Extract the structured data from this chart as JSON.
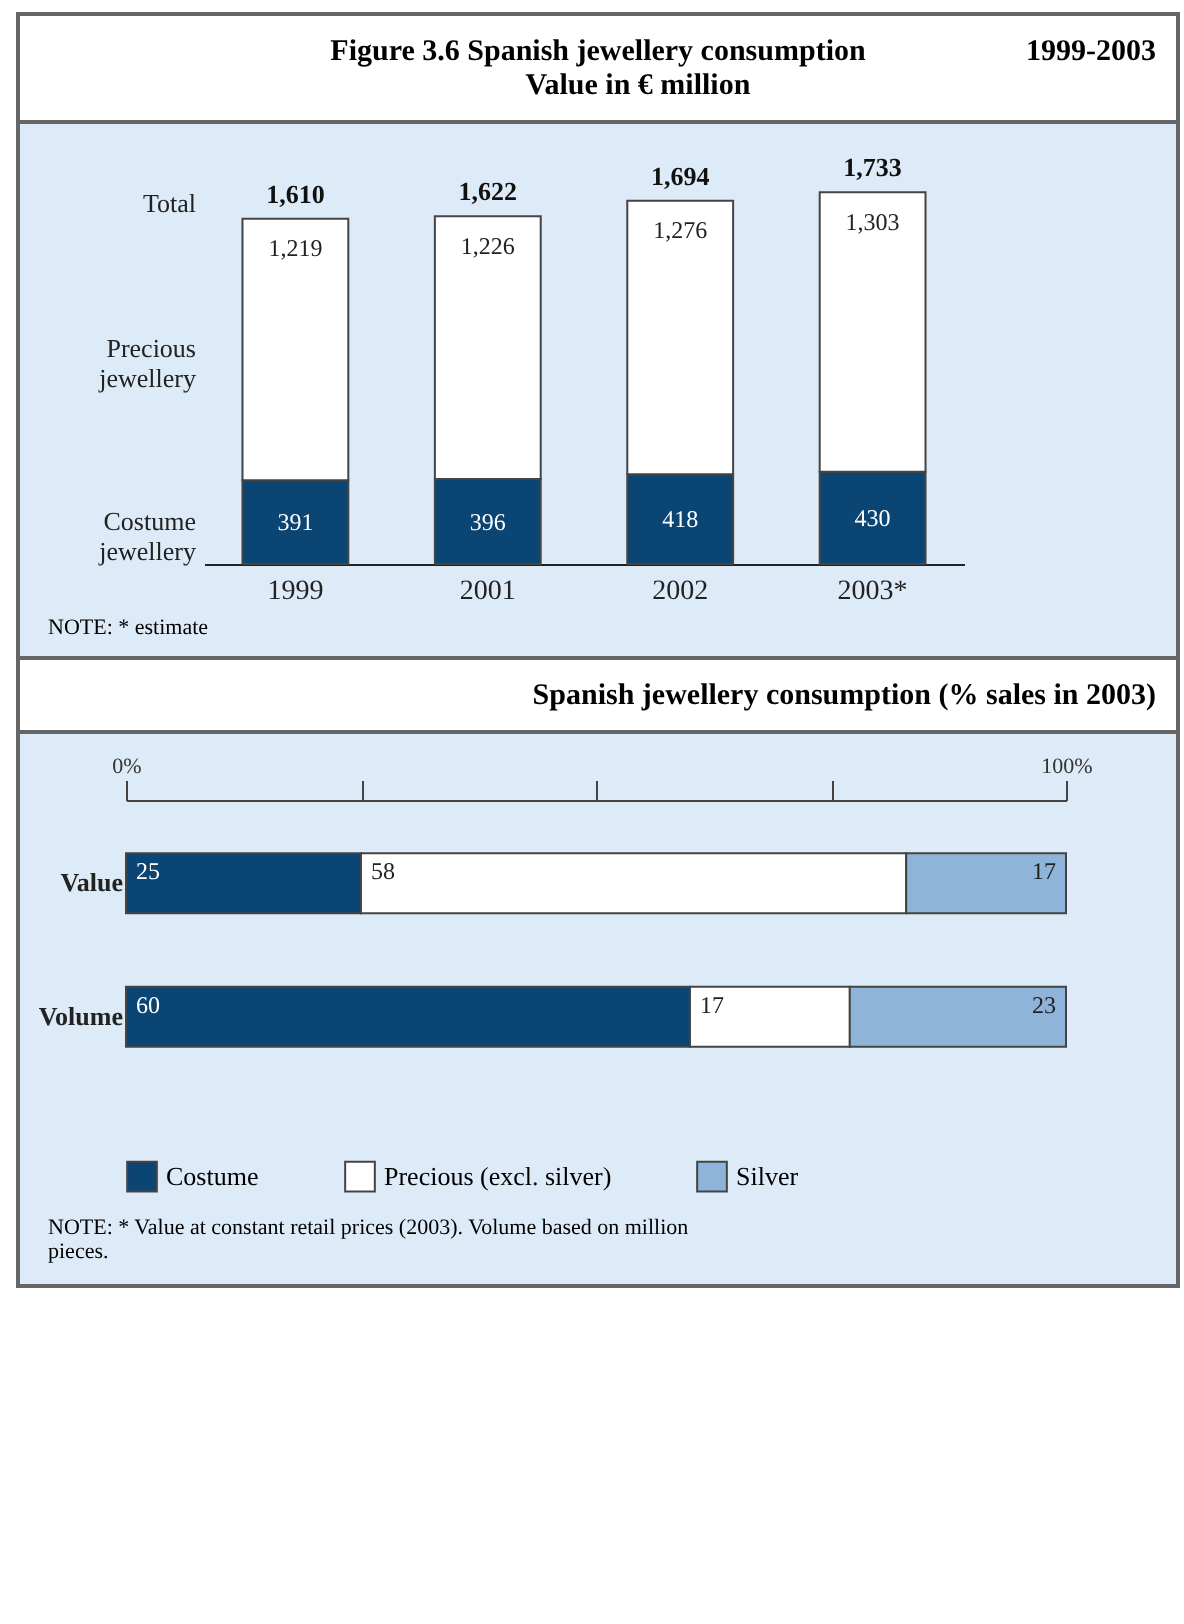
{
  "chart_data": [
    {
      "type": "bar",
      "title": "Figure 3.6 Spanish jewellery consumption",
      "subtitle": "Value in € million",
      "annotations": [
        "1999-2003",
        "Total",
        "NOTE: * estimate"
      ],
      "categories": [
        "1999",
        "2001",
        "2002",
        "2003*"
      ],
      "stacked": true,
      "tick_labels": "x",
      "totals": [
        "1,610",
        "1,622",
        "1,694",
        "1,733"
      ],
      "series": [
        {
          "name": "Costume jewellery",
          "color": "#0b4574",
          "values": [
            391,
            396,
            418,
            430
          ],
          "value_labels": [
            "391",
            "396",
            "418",
            "430"
          ]
        },
        {
          "name": "Precious jewellery",
          "color": "#ffffff",
          "values": [
            1219,
            1226,
            1276,
            1303
          ],
          "value_labels": [
            "1,219",
            "1,226",
            "1,276",
            "1,303"
          ]
        }
      ]
    },
    {
      "type": "bar",
      "title": "Spanish jewellery consumption (% sales in 2003)",
      "orientation": "horizontal",
      "stacked": true,
      "categories": [
        "Value",
        "Volume"
      ],
      "xlim": [
        0,
        100
      ],
      "xticks": [
        {
          "value": 0,
          "label": "0%"
        },
        {
          "value": 25,
          "label": null
        },
        {
          "value": 50,
          "label": null
        },
        {
          "value": 75,
          "label": null
        },
        {
          "value": 100,
          "label": "100%"
        }
      ],
      "data_labels": true,
      "legend": "bottom",
      "annotations": [
        "NOTE: * Value at constant retail prices (2003). Volume based on million pieces."
      ],
      "series": [
        {
          "name": "Costume",
          "color": "#0b4574",
          "values": [
            25,
            60
          ]
        },
        {
          "name": "Precious (excl. silver)",
          "color": "#ffffff",
          "values": [
            58,
            17
          ]
        },
        {
          "name": "Silver",
          "color": "#8fb4d9",
          "values": [
            17,
            23
          ]
        }
      ]
    }
  ]
}
